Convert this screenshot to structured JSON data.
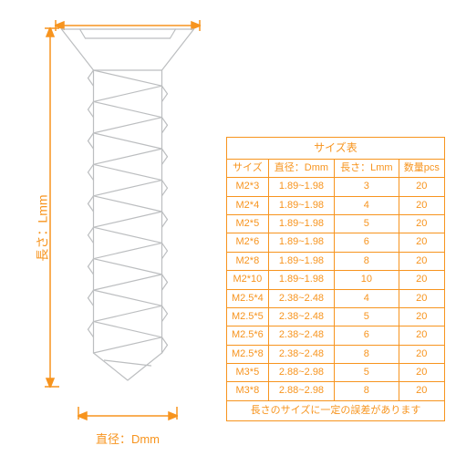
{
  "colors": {
    "stroke": "#f7941e",
    "screw_line": "#bcbec0",
    "background": "#ffffff"
  },
  "dimensions": {
    "length_label": "長さ：Lmm",
    "diameter_label": "直径：Dmm"
  },
  "table": {
    "title": "サイズ表",
    "columns": [
      "サイズ",
      "直径：Dmm",
      "長さ：Lmm",
      "数量pcs"
    ],
    "rows": [
      [
        "M2*3",
        "1.89~1.98",
        "3",
        "20"
      ],
      [
        "M2*4",
        "1.89~1.98",
        "4",
        "20"
      ],
      [
        "M2*5",
        "1.89~1.98",
        "5",
        "20"
      ],
      [
        "M2*6",
        "1.89~1.98",
        "6",
        "20"
      ],
      [
        "M2*8",
        "1.89~1.98",
        "8",
        "20"
      ],
      [
        "M2*10",
        "1.89~1.98",
        "10",
        "20"
      ],
      [
        "M2.5*4",
        "2.38~2.48",
        "4",
        "20"
      ],
      [
        "M2.5*5",
        "2.38~2.48",
        "5",
        "20"
      ],
      [
        "M2.5*6",
        "2.38~2.48",
        "6",
        "20"
      ],
      [
        "M2.5*8",
        "2.38~2.48",
        "8",
        "20"
      ],
      [
        "M3*5",
        "2.88~2.98",
        "5",
        "20"
      ],
      [
        "M3*8",
        "2.88~2.98",
        "8",
        "20"
      ]
    ],
    "footer": "長さのサイズに一定の誤差があります"
  },
  "screw": {
    "head_top_width": 145,
    "head_bottom_width": 75,
    "head_height": 45,
    "shaft_width": 75,
    "shaft_height": 310,
    "thread_count": 9,
    "tip_height": 30,
    "line_color": "#bcbec0",
    "line_width": 1.2
  }
}
